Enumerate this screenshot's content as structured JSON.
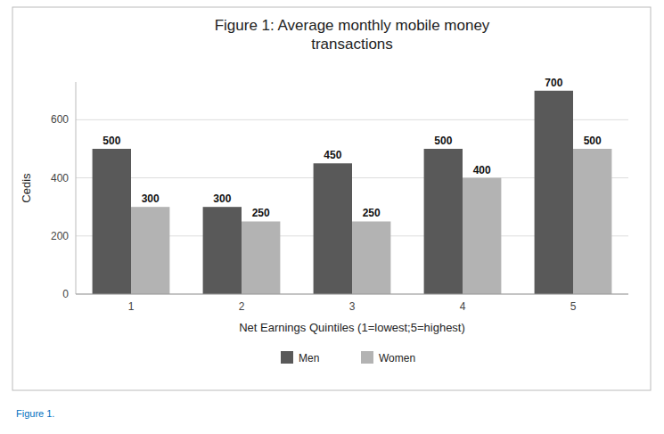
{
  "chart_data": {
    "type": "bar",
    "title": "Figure 1: Average monthly mobile money\ntransactions",
    "xlabel": "Net Earnings Quintiles (1=lowest;5=highest)",
    "ylabel": "Cedis",
    "categories": [
      1,
      2,
      3,
      4,
      5
    ],
    "series": [
      {
        "name": "Men",
        "color": "#595959",
        "values": [
          500,
          300,
          450,
          500,
          700
        ]
      },
      {
        "name": "Women",
        "color": "#b3b3b3",
        "values": [
          300,
          250,
          250,
          400,
          500
        ]
      }
    ],
    "ylim": [
      0,
      730
    ],
    "yticks": [
      0,
      200,
      400,
      600
    ],
    "grid": true,
    "legend": "bottom",
    "data_labels": true,
    "annotations": [
      "Figure 1."
    ]
  }
}
